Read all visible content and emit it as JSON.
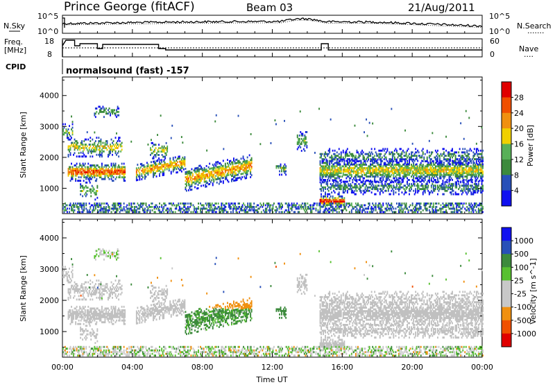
{
  "header": {
    "station": "Prince George (fitACF)",
    "beam": "Beam 03",
    "date": "21/Aug/2011"
  },
  "side_labels": {
    "nsky": "N.Sky",
    "nsearch": "N.Search",
    "nsearch_line": "·······",
    "freq_top": "Freq.",
    "freq_unit": "[MHz]",
    "nave": "Nave",
    "nave_line": "····",
    "cpid": "CPID"
  },
  "cpid_text": "normalsound (fast) -157",
  "noise_panel": {
    "left_ticks": [
      "10^5",
      "10^0"
    ],
    "right_ticks": [
      "10^5",
      "10^0"
    ]
  },
  "freq_panel": {
    "left_ticks": [
      "18",
      "8"
    ],
    "right_ticks": [
      "60",
      "0"
    ]
  },
  "time_axis": {
    "label": "Time UT",
    "ticks": [
      "00:00",
      "04:00",
      "08:00",
      "12:00",
      "16:00",
      "20:00",
      "00:00"
    ]
  },
  "range_axis": {
    "label": "Slant Range [km]",
    "ticks": [
      "4000",
      "3000",
      "2000",
      "1000"
    ]
  },
  "colors": {
    "power_scale": [
      "#1010f0",
      "#2850b8",
      "#3c8a3c",
      "#58b058",
      "#f0d000",
      "#f09010",
      "#f05000",
      "#e00000"
    ],
    "velocity_scale": [
      "#e00000",
      "#f05000",
      "#f09010",
      "#c8c8c8",
      "#c8c8c8",
      "#58c030",
      "#3c8a3c",
      "#2850b8",
      "#1010f0"
    ],
    "ground_gray": "#c0c0c0"
  },
  "chart_data": [
    {
      "type": "heatmap",
      "title": "",
      "xlabel": "",
      "ylabel": "Slant Range [km]",
      "colorbar_label": "Power [dB]",
      "colorbar_ticks": [
        "28",
        "24",
        "20",
        "16",
        "12",
        "8",
        "4"
      ],
      "xlim": [
        0,
        24
      ],
      "ylim": [
        180,
        4600
      ],
      "features": [
        {
          "name": "early echoes",
          "t_start": 0.0,
          "t_end": 3.6,
          "range_km": 1500,
          "power_db": 24
        },
        {
          "name": "morning slant band",
          "t_start": 4.2,
          "t_end": 7.0,
          "range_km": 1700,
          "power_db": 22
        },
        {
          "name": "midday patch",
          "t_start": 7.0,
          "t_end": 10.8,
          "range_km": 1500,
          "power_db": 22
        },
        {
          "name": "afternoon band",
          "t_start": 14.7,
          "t_end": 24.0,
          "range_km": 1550,
          "power_db": 18
        },
        {
          "name": "near-range spot",
          "t_start": 14.7,
          "t_end": 16.1,
          "range_km": 550,
          "power_db": 28
        }
      ]
    },
    {
      "type": "heatmap",
      "title": "",
      "xlabel": "Time UT",
      "ylabel": "Slant Range [km]",
      "colorbar_label": "Velocity [m s^-1]",
      "colorbar_ticks": [
        "1000",
        "500",
        "100",
        "25",
        "-25",
        "-100",
        "-500",
        "-1000"
      ],
      "xlim": [
        0,
        24
      ],
      "ylim": [
        180,
        4600
      ],
      "features": [
        {
          "name": "ground scatter",
          "t_start": 0.0,
          "t_end": 24.0,
          "range_km": 1600,
          "velocity_ms": 0
        },
        {
          "name": "moving echo",
          "t_start": 7.0,
          "t_end": 10.8,
          "range_km": 1500,
          "velocity_ms": -300
        }
      ]
    }
  ]
}
